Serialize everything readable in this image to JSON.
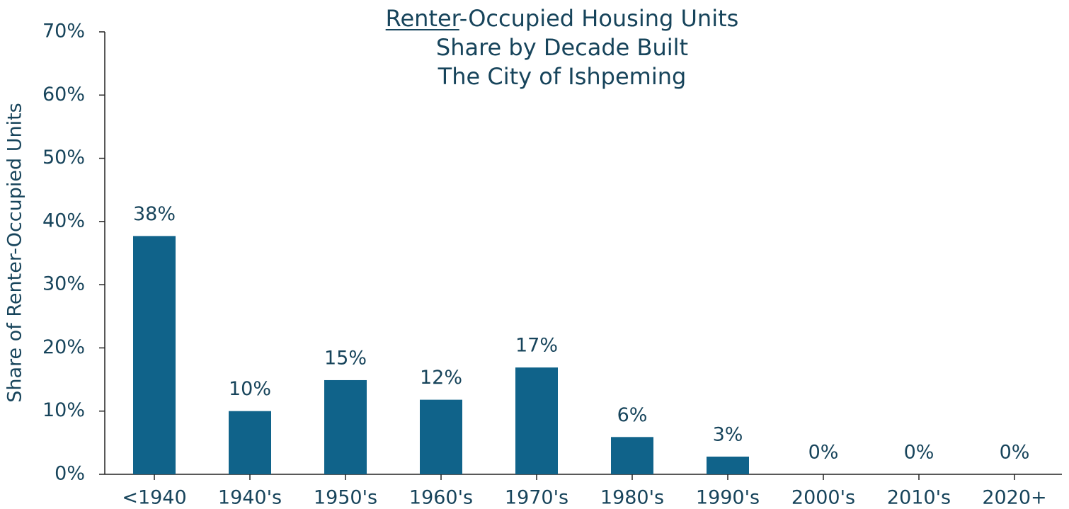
{
  "chart_data": {
    "type": "bar",
    "title": [
      "Renter-Occupied Housing Units",
      "Share by Decade Built",
      "The City of Ishpeming"
    ],
    "y_label": "Share of Renter-Occupied Units",
    "categories": [
      "<1940",
      "1940's",
      "1950's",
      "1960's",
      "1970's",
      "1980's",
      "1990's",
      "2000's",
      "2010's",
      "2020+"
    ],
    "values": [
      37.7,
      10,
      14.9,
      11.8,
      16.9,
      5.9,
      2.8,
      0,
      0,
      0
    ],
    "value_labels": [
      "38%",
      "10%",
      "15%",
      "12%",
      "17%",
      "6%",
      "3%",
      "0%",
      "0%",
      "0%"
    ],
    "color": "#10638a",
    "ylim": [
      0,
      70
    ],
    "yticks": [
      {
        "value": 0,
        "label": "0%"
      },
      {
        "value": 10,
        "label": "10%"
      },
      {
        "value": 20,
        "label": "20%"
      },
      {
        "value": 30,
        "label": "30%"
      },
      {
        "value": 40,
        "label": "40%"
      },
      {
        "value": 50,
        "label": "50%"
      },
      {
        "value": 60,
        "label": "60%"
      },
      {
        "value": 70,
        "label": "70%"
      }
    ]
  }
}
